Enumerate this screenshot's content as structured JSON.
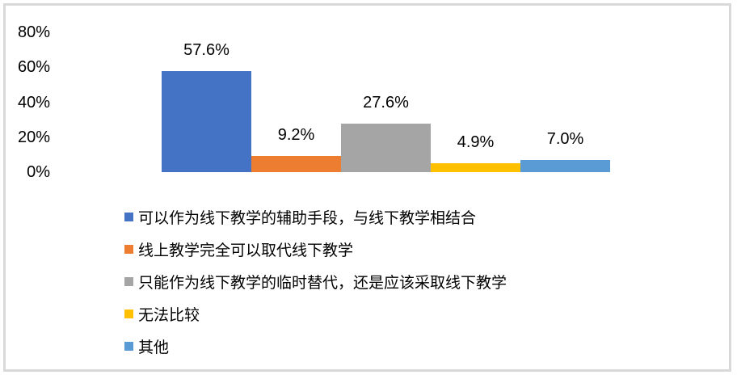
{
  "chart_data": {
    "type": "bar",
    "title": "",
    "xlabel": "",
    "ylabel": "",
    "categories": [
      "可以作为线下教学的辅助手段，与线下教学相结合",
      "线上教学完全可以取代线下教学",
      "只能作为线下教学的临时替代，还是应该采取线下教学",
      "无法比较",
      "其他"
    ],
    "values": [
      57.6,
      9.2,
      27.6,
      4.9,
      7.0
    ],
    "data_labels": [
      "57.6%",
      "9.2%",
      "27.6%",
      "4.9%",
      "7.0%"
    ],
    "colors": [
      "#4472c4",
      "#ed7d31",
      "#a5a5a5",
      "#ffc000",
      "#5b9bd5"
    ],
    "ylim": [
      0,
      80
    ],
    "y_tick_labels": [
      "0%",
      "20%",
      "40%",
      "60%",
      "80%"
    ],
    "grid": false,
    "axis_lines": false,
    "legend_position": "bottom-left",
    "frame_border_color": "#d9d9d9",
    "background_color": "#ffffff",
    "text_color": "#000000"
  }
}
